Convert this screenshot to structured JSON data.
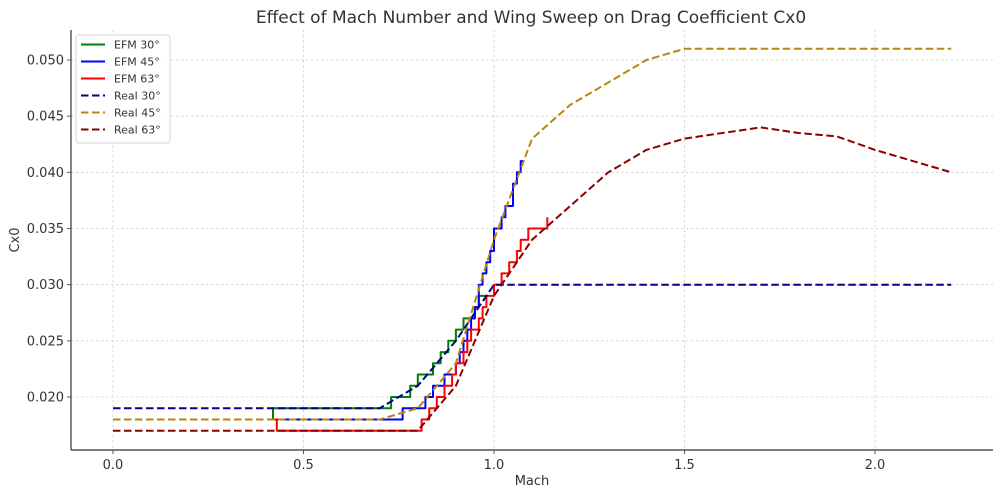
{
  "chart_data": {
    "type": "line",
    "title": "Effect of Mach Number and Wing Sweep on Drag Coefficient Cx0",
    "xlabel": "Mach",
    "ylabel": "Cx0",
    "xlim": [
      -0.11,
      2.31
    ],
    "ylim": [
      0.0155,
      0.0527
    ],
    "xticks": [
      0.0,
      0.5,
      1.0,
      1.5,
      2.0
    ],
    "xtick_labels": [
      "0.0",
      "0.5",
      "1.0",
      "1.5",
      "2.0"
    ],
    "yticks": [
      0.02,
      0.025,
      0.03,
      0.035,
      0.04,
      0.045,
      0.05
    ],
    "ytick_labels": [
      "0.020",
      "0.025",
      "0.030",
      "0.035",
      "0.040",
      "0.045",
      "0.050"
    ],
    "grid": true,
    "legend": "top-left",
    "series": [
      {
        "name": "EFM 30°",
        "color": "#008000",
        "style": "solid",
        "step": true,
        "x": [
          0.42,
          0.42,
          0.73,
          0.75,
          0.78,
          0.8,
          0.82,
          0.84,
          0.85,
          0.86,
          0.87,
          0.88,
          0.89,
          0.9,
          0.91,
          0.92,
          0.94,
          0.95,
          0.96,
          0.98
        ],
        "y": [
          0.018,
          0.019,
          0.02,
          0.02,
          0.021,
          0.022,
          0.022,
          0.023,
          0.023,
          0.024,
          0.024,
          0.025,
          0.025,
          0.026,
          0.026,
          0.027,
          0.027,
          0.028,
          0.029,
          0.029
        ]
      },
      {
        "name": "EFM 45°",
        "color": "#0000ff",
        "style": "solid",
        "step": true,
        "x": [
          0.42,
          0.75,
          0.76,
          0.8,
          0.82,
          0.84,
          0.86,
          0.87,
          0.88,
          0.9,
          0.91,
          0.92,
          0.93,
          0.94,
          0.95,
          0.96,
          0.97,
          0.98,
          0.99,
          1.0,
          1.02,
          1.03,
          1.05,
          1.06,
          1.07,
          1.08
        ],
        "y": [
          0.018,
          0.018,
          0.019,
          0.019,
          0.02,
          0.021,
          0.021,
          0.022,
          0.022,
          0.023,
          0.024,
          0.025,
          0.026,
          0.027,
          0.028,
          0.03,
          0.031,
          0.032,
          0.033,
          0.035,
          0.036,
          0.037,
          0.039,
          0.04,
          0.041,
          0.041
        ]
      },
      {
        "name": "EFM 63°",
        "color": "#ff0000",
        "style": "solid",
        "step": true,
        "x": [
          0.42,
          0.43,
          0.8,
          0.81,
          0.82,
          0.83,
          0.85,
          0.86,
          0.87,
          0.88,
          0.89,
          0.9,
          0.91,
          0.92,
          0.93,
          0.94,
          0.95,
          0.96,
          0.97,
          0.98,
          0.99,
          1.0,
          1.01,
          1.02,
          1.03,
          1.04,
          1.05,
          1.06,
          1.07,
          1.09,
          1.11,
          1.13,
          1.14
        ],
        "y": [
          0.018,
          0.017,
          0.017,
          0.018,
          0.018,
          0.019,
          0.02,
          0.02,
          0.021,
          0.021,
          0.022,
          0.023,
          0.023,
          0.024,
          0.025,
          0.026,
          0.026,
          0.027,
          0.028,
          0.029,
          0.029,
          0.03,
          0.03,
          0.031,
          0.031,
          0.032,
          0.032,
          0.033,
          0.034,
          0.035,
          0.035,
          0.035,
          0.036
        ]
      },
      {
        "name": "Real 30°",
        "color": "#00008b",
        "style": "dashed",
        "step": false,
        "x": [
          0.0,
          0.7,
          0.8,
          0.9,
          1.0,
          1.2,
          1.5,
          2.2
        ],
        "y": [
          0.019,
          0.019,
          0.021,
          0.025,
          0.03,
          0.03,
          0.03,
          0.03
        ]
      },
      {
        "name": "Real 45°",
        "color": "#b8860b",
        "style": "dashed",
        "step": false,
        "x": [
          0.0,
          0.7,
          0.8,
          0.9,
          1.0,
          1.1,
          1.2,
          1.3,
          1.4,
          1.5,
          2.2
        ],
        "y": [
          0.018,
          0.018,
          0.019,
          0.023,
          0.034,
          0.043,
          0.046,
          0.048,
          0.05,
          0.051,
          0.051
        ]
      },
      {
        "name": "Real 63°",
        "color": "#8b0000",
        "style": "dashed",
        "step": false,
        "x": [
          0.0,
          0.8,
          0.9,
          1.0,
          1.1,
          1.15,
          1.2,
          1.3,
          1.4,
          1.5,
          1.7,
          1.8,
          1.9,
          2.0,
          2.2
        ],
        "y": [
          0.017,
          0.017,
          0.021,
          0.029,
          0.034,
          0.0355,
          0.037,
          0.04,
          0.042,
          0.043,
          0.044,
          0.0435,
          0.0432,
          0.042,
          0.04
        ]
      }
    ]
  }
}
